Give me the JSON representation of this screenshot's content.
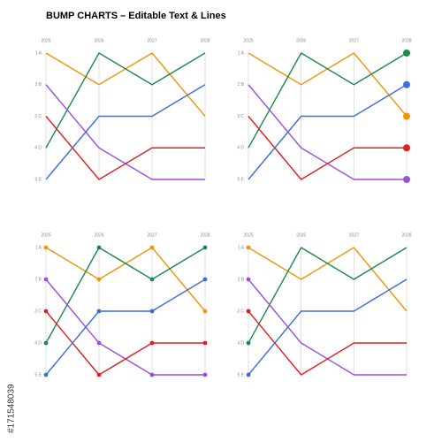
{
  "title": "BUMP CHARTS – Editable Text & Lines",
  "stock_id": "#171548039",
  "chart_data": [
    {
      "type": "bump",
      "markers": "none",
      "categories": [
        "2025",
        "2026",
        "2027",
        "2028"
      ],
      "ylim": [
        1,
        5
      ],
      "y_inverted": true,
      "grid": true,
      "yticks": [
        {
          "value": 1,
          "label": "1 A"
        },
        {
          "value": 2,
          "label": "2 B"
        },
        {
          "value": 3,
          "label": "3 C"
        },
        {
          "value": 4,
          "label": "4 D"
        },
        {
          "value": 5,
          "label": "5 E"
        }
      ],
      "series": [
        {
          "color": "#f0950c",
          "values": [
            1,
            2,
            1,
            3
          ]
        },
        {
          "color": "#1b8a4c",
          "values": [
            4,
            1,
            2,
            1
          ]
        },
        {
          "color": "#9b4fe0",
          "values": [
            2,
            4,
            5,
            5
          ]
        },
        {
          "color": "#e0201f",
          "values": [
            3,
            5,
            4,
            4
          ]
        },
        {
          "color": "#3a6ee0",
          "values": [
            5,
            3,
            3,
            2
          ]
        }
      ]
    },
    {
      "type": "bump",
      "markers": "end",
      "categories": [
        "2025",
        "2026",
        "2027",
        "2028"
      ],
      "ylim": [
        1,
        5
      ],
      "y_inverted": true,
      "grid": true,
      "yticks": [
        {
          "value": 1,
          "label": "1 A"
        },
        {
          "value": 2,
          "label": "2 B"
        },
        {
          "value": 3,
          "label": "3 C"
        },
        {
          "value": 4,
          "label": "4 D"
        },
        {
          "value": 5,
          "label": "5 E"
        }
      ],
      "series": [
        {
          "color": "#f0950c",
          "values": [
            1,
            2,
            1,
            3
          ]
        },
        {
          "color": "#1b8a4c",
          "values": [
            4,
            1,
            2,
            1
          ]
        },
        {
          "color": "#9b4fe0",
          "values": [
            2,
            4,
            5,
            5
          ]
        },
        {
          "color": "#e0201f",
          "values": [
            3,
            5,
            4,
            4
          ]
        },
        {
          "color": "#3a6ee0",
          "values": [
            5,
            3,
            3,
            2
          ]
        }
      ]
    },
    {
      "type": "bump",
      "markers": "all",
      "categories": [
        "2025",
        "2026",
        "2027",
        "2028"
      ],
      "ylim": [
        1,
        5
      ],
      "y_inverted": true,
      "grid": true,
      "yticks": [
        {
          "value": 1,
          "label": "1 A"
        },
        {
          "value": 2,
          "label": "2 B"
        },
        {
          "value": 3,
          "label": "3 C"
        },
        {
          "value": 4,
          "label": "4 D"
        },
        {
          "value": 5,
          "label": "5 E"
        }
      ],
      "series": [
        {
          "color": "#f0950c",
          "values": [
            1,
            2,
            1,
            3
          ]
        },
        {
          "color": "#1b8a4c",
          "values": [
            4,
            1,
            2,
            1
          ]
        },
        {
          "color": "#9b4fe0",
          "values": [
            2,
            4,
            5,
            5
          ]
        },
        {
          "color": "#e0201f",
          "values": [
            3,
            5,
            4,
            4
          ]
        },
        {
          "color": "#3a6ee0",
          "values": [
            5,
            3,
            3,
            2
          ]
        }
      ]
    },
    {
      "type": "bump",
      "markers": "start",
      "categories": [
        "2025",
        "2026",
        "2027",
        "2028"
      ],
      "ylim": [
        1,
        5
      ],
      "y_inverted": true,
      "grid": true,
      "yticks": [
        {
          "value": 1,
          "label": "1 A"
        },
        {
          "value": 2,
          "label": "2 B"
        },
        {
          "value": 3,
          "label": "3 C"
        },
        {
          "value": 4,
          "label": "4 D"
        },
        {
          "value": 5,
          "label": "5 E"
        }
      ],
      "series": [
        {
          "color": "#f0950c",
          "values": [
            1,
            2,
            1,
            3
          ]
        },
        {
          "color": "#1b8a4c",
          "values": [
            4,
            1,
            2,
            1
          ]
        },
        {
          "color": "#9b4fe0",
          "values": [
            2,
            4,
            5,
            5
          ]
        },
        {
          "color": "#e0201f",
          "values": [
            3,
            5,
            4,
            4
          ]
        },
        {
          "color": "#3a6ee0",
          "values": [
            5,
            3,
            3,
            2
          ]
        }
      ]
    }
  ]
}
